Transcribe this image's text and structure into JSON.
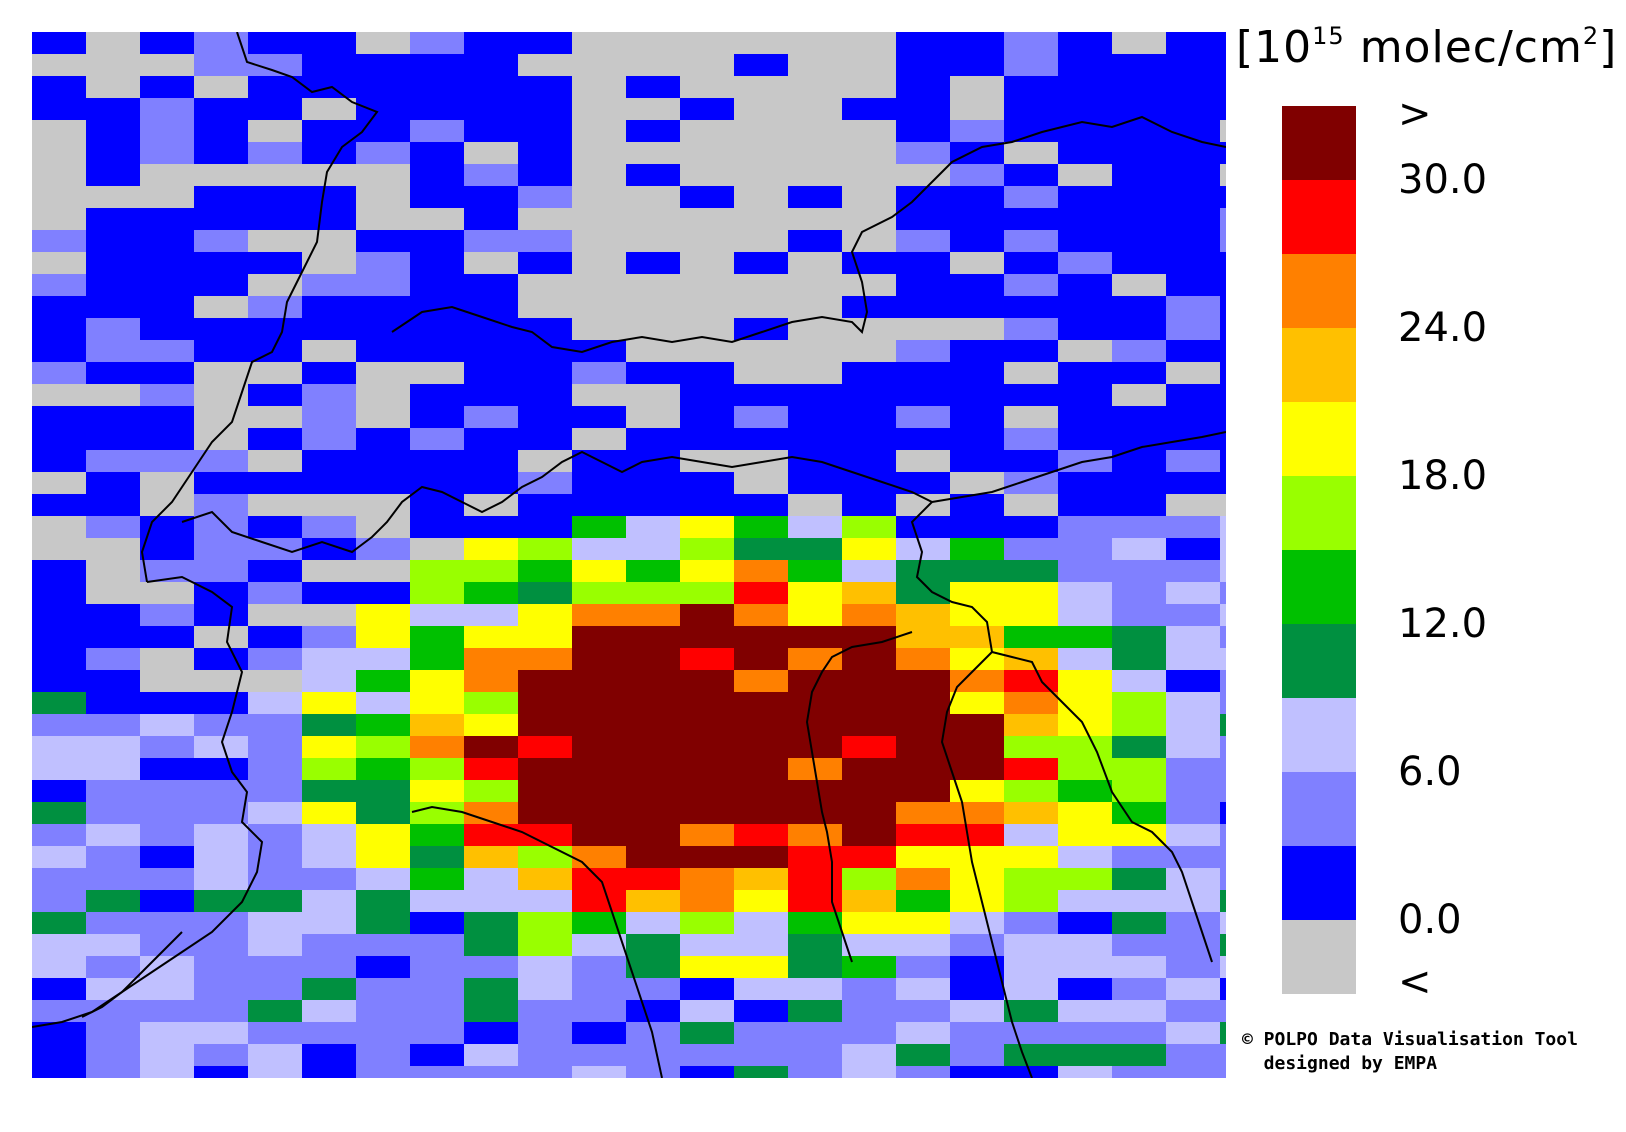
{
  "legend": {
    "unit_prefix": "[10",
    "unit_exp": "15",
    "unit_main": " molec/cm",
    "unit_sq": "2",
    "unit_suffix": "]",
    "colors": [
      "#800000",
      "#ff0000",
      "#ff8000",
      "#ffc000",
      "#ffff00",
      "#99ff00",
      "#00c000",
      "#009040",
      "#c0c0ff",
      "#8080ff",
      "#0000ff",
      "#c8c8c8"
    ],
    "ticks": [
      ">",
      "30.0",
      "24.0",
      "18.0",
      "12.0",
      "6.0",
      "0.0",
      "<"
    ]
  },
  "credit": {
    "line1": "© POLPO Data Visualisation Tool",
    "line2": "  designed by EMPA"
  },
  "map": {
    "background_class": "deep-blue"
  }
}
